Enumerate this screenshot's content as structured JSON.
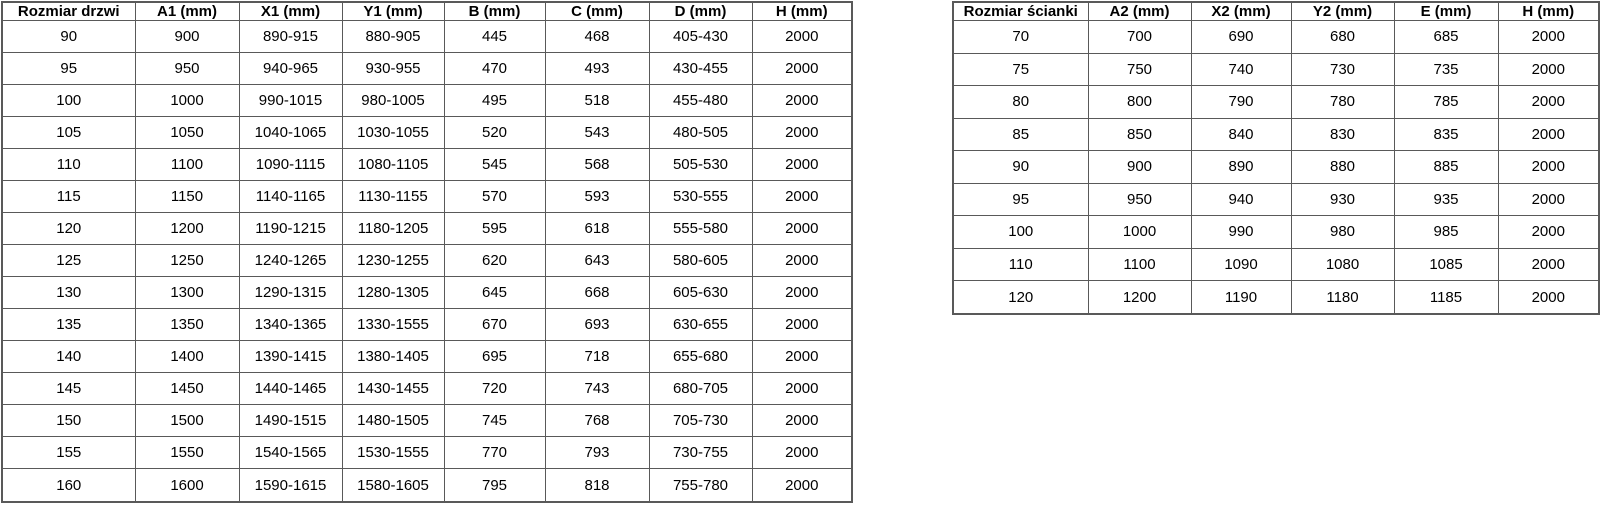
{
  "colors": {
    "background": "#ffffff",
    "border": "#595959",
    "text": "#000000"
  },
  "tables": [
    {
      "name": "door-sizes",
      "headers": [
        "Rozmiar drzwi",
        "A1 (mm)",
        "X1 (mm)",
        "Y1 (mm)",
        "B (mm)",
        "C (mm)",
        "D (mm)",
        "H (mm)"
      ],
      "rows": [
        [
          "90",
          "900",
          "890-915",
          "880-905",
          "445",
          "468",
          "405-430",
          "2000"
        ],
        [
          "95",
          "950",
          "940-965",
          "930-955",
          "470",
          "493",
          "430-455",
          "2000"
        ],
        [
          "100",
          "1000",
          "990-1015",
          "980-1005",
          "495",
          "518",
          "455-480",
          "2000"
        ],
        [
          "105",
          "1050",
          "1040-1065",
          "1030-1055",
          "520",
          "543",
          "480-505",
          "2000"
        ],
        [
          "110",
          "1100",
          "1090-1115",
          "1080-1105",
          "545",
          "568",
          "505-530",
          "2000"
        ],
        [
          "115",
          "1150",
          "1140-1165",
          "1130-1155",
          "570",
          "593",
          "530-555",
          "2000"
        ],
        [
          "120",
          "1200",
          "1190-1215",
          "1180-1205",
          "595",
          "618",
          "555-580",
          "2000"
        ],
        [
          "125",
          "1250",
          "1240-1265",
          "1230-1255",
          "620",
          "643",
          "580-605",
          "2000"
        ],
        [
          "130",
          "1300",
          "1290-1315",
          "1280-1305",
          "645",
          "668",
          "605-630",
          "2000"
        ],
        [
          "135",
          "1350",
          "1340-1365",
          "1330-1555",
          "670",
          "693",
          "630-655",
          "2000"
        ],
        [
          "140",
          "1400",
          "1390-1415",
          "1380-1405",
          "695",
          "718",
          "655-680",
          "2000"
        ],
        [
          "145",
          "1450",
          "1440-1465",
          "1430-1455",
          "720",
          "743",
          "680-705",
          "2000"
        ],
        [
          "150",
          "1500",
          "1490-1515",
          "1480-1505",
          "745",
          "768",
          "705-730",
          "2000"
        ],
        [
          "155",
          "1550",
          "1540-1565",
          "1530-1555",
          "770",
          "793",
          "730-755",
          "2000"
        ],
        [
          "160",
          "1600",
          "1590-1615",
          "1580-1605",
          "795",
          "818",
          "755-780",
          "2000"
        ]
      ]
    },
    {
      "name": "wall-sizes",
      "headers": [
        "Rozmiar ścianki",
        "A2 (mm)",
        "X2 (mm)",
        "Y2 (mm)",
        "E (mm)",
        "H (mm)"
      ],
      "rows": [
        [
          "70",
          "700",
          "690",
          "680",
          "685",
          "2000"
        ],
        [
          "75",
          "750",
          "740",
          "730",
          "735",
          "2000"
        ],
        [
          "80",
          "800",
          "790",
          "780",
          "785",
          "2000"
        ],
        [
          "85",
          "850",
          "840",
          "830",
          "835",
          "2000"
        ],
        [
          "90",
          "900",
          "890",
          "880",
          "885",
          "2000"
        ],
        [
          "95",
          "950",
          "940",
          "930",
          "935",
          "2000"
        ],
        [
          "100",
          "1000",
          "990",
          "980",
          "985",
          "2000"
        ],
        [
          "110",
          "1100",
          "1090",
          "1080",
          "1085",
          "2000"
        ],
        [
          "120",
          "1200",
          "1190",
          "1180",
          "1185",
          "2000"
        ]
      ]
    }
  ]
}
